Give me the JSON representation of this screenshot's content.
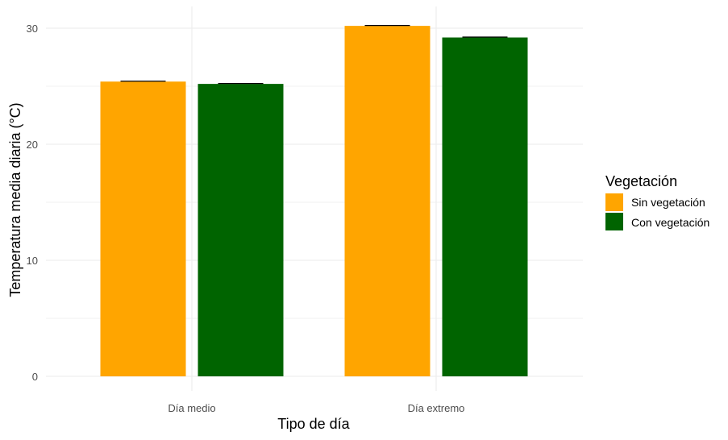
{
  "chart_data": {
    "type": "bar",
    "categories": [
      "Día medio",
      "Día extremo"
    ],
    "series": [
      {
        "name": "Sin vegetación",
        "color": "#FFA500",
        "values": [
          25.4,
          30.2
        ]
      },
      {
        "name": "Con vegetación",
        "color": "#006400",
        "values": [
          25.2,
          29.2
        ]
      }
    ],
    "error_bars": true,
    "xlabel": "Tipo de día",
    "ylabel": "Temperatura media diaria (°C)",
    "ylim": [
      0,
      32
    ],
    "yticks": [
      0,
      10,
      20,
      30
    ],
    "grid": true,
    "legend": {
      "title": "Vegetación",
      "placement": "right"
    }
  }
}
